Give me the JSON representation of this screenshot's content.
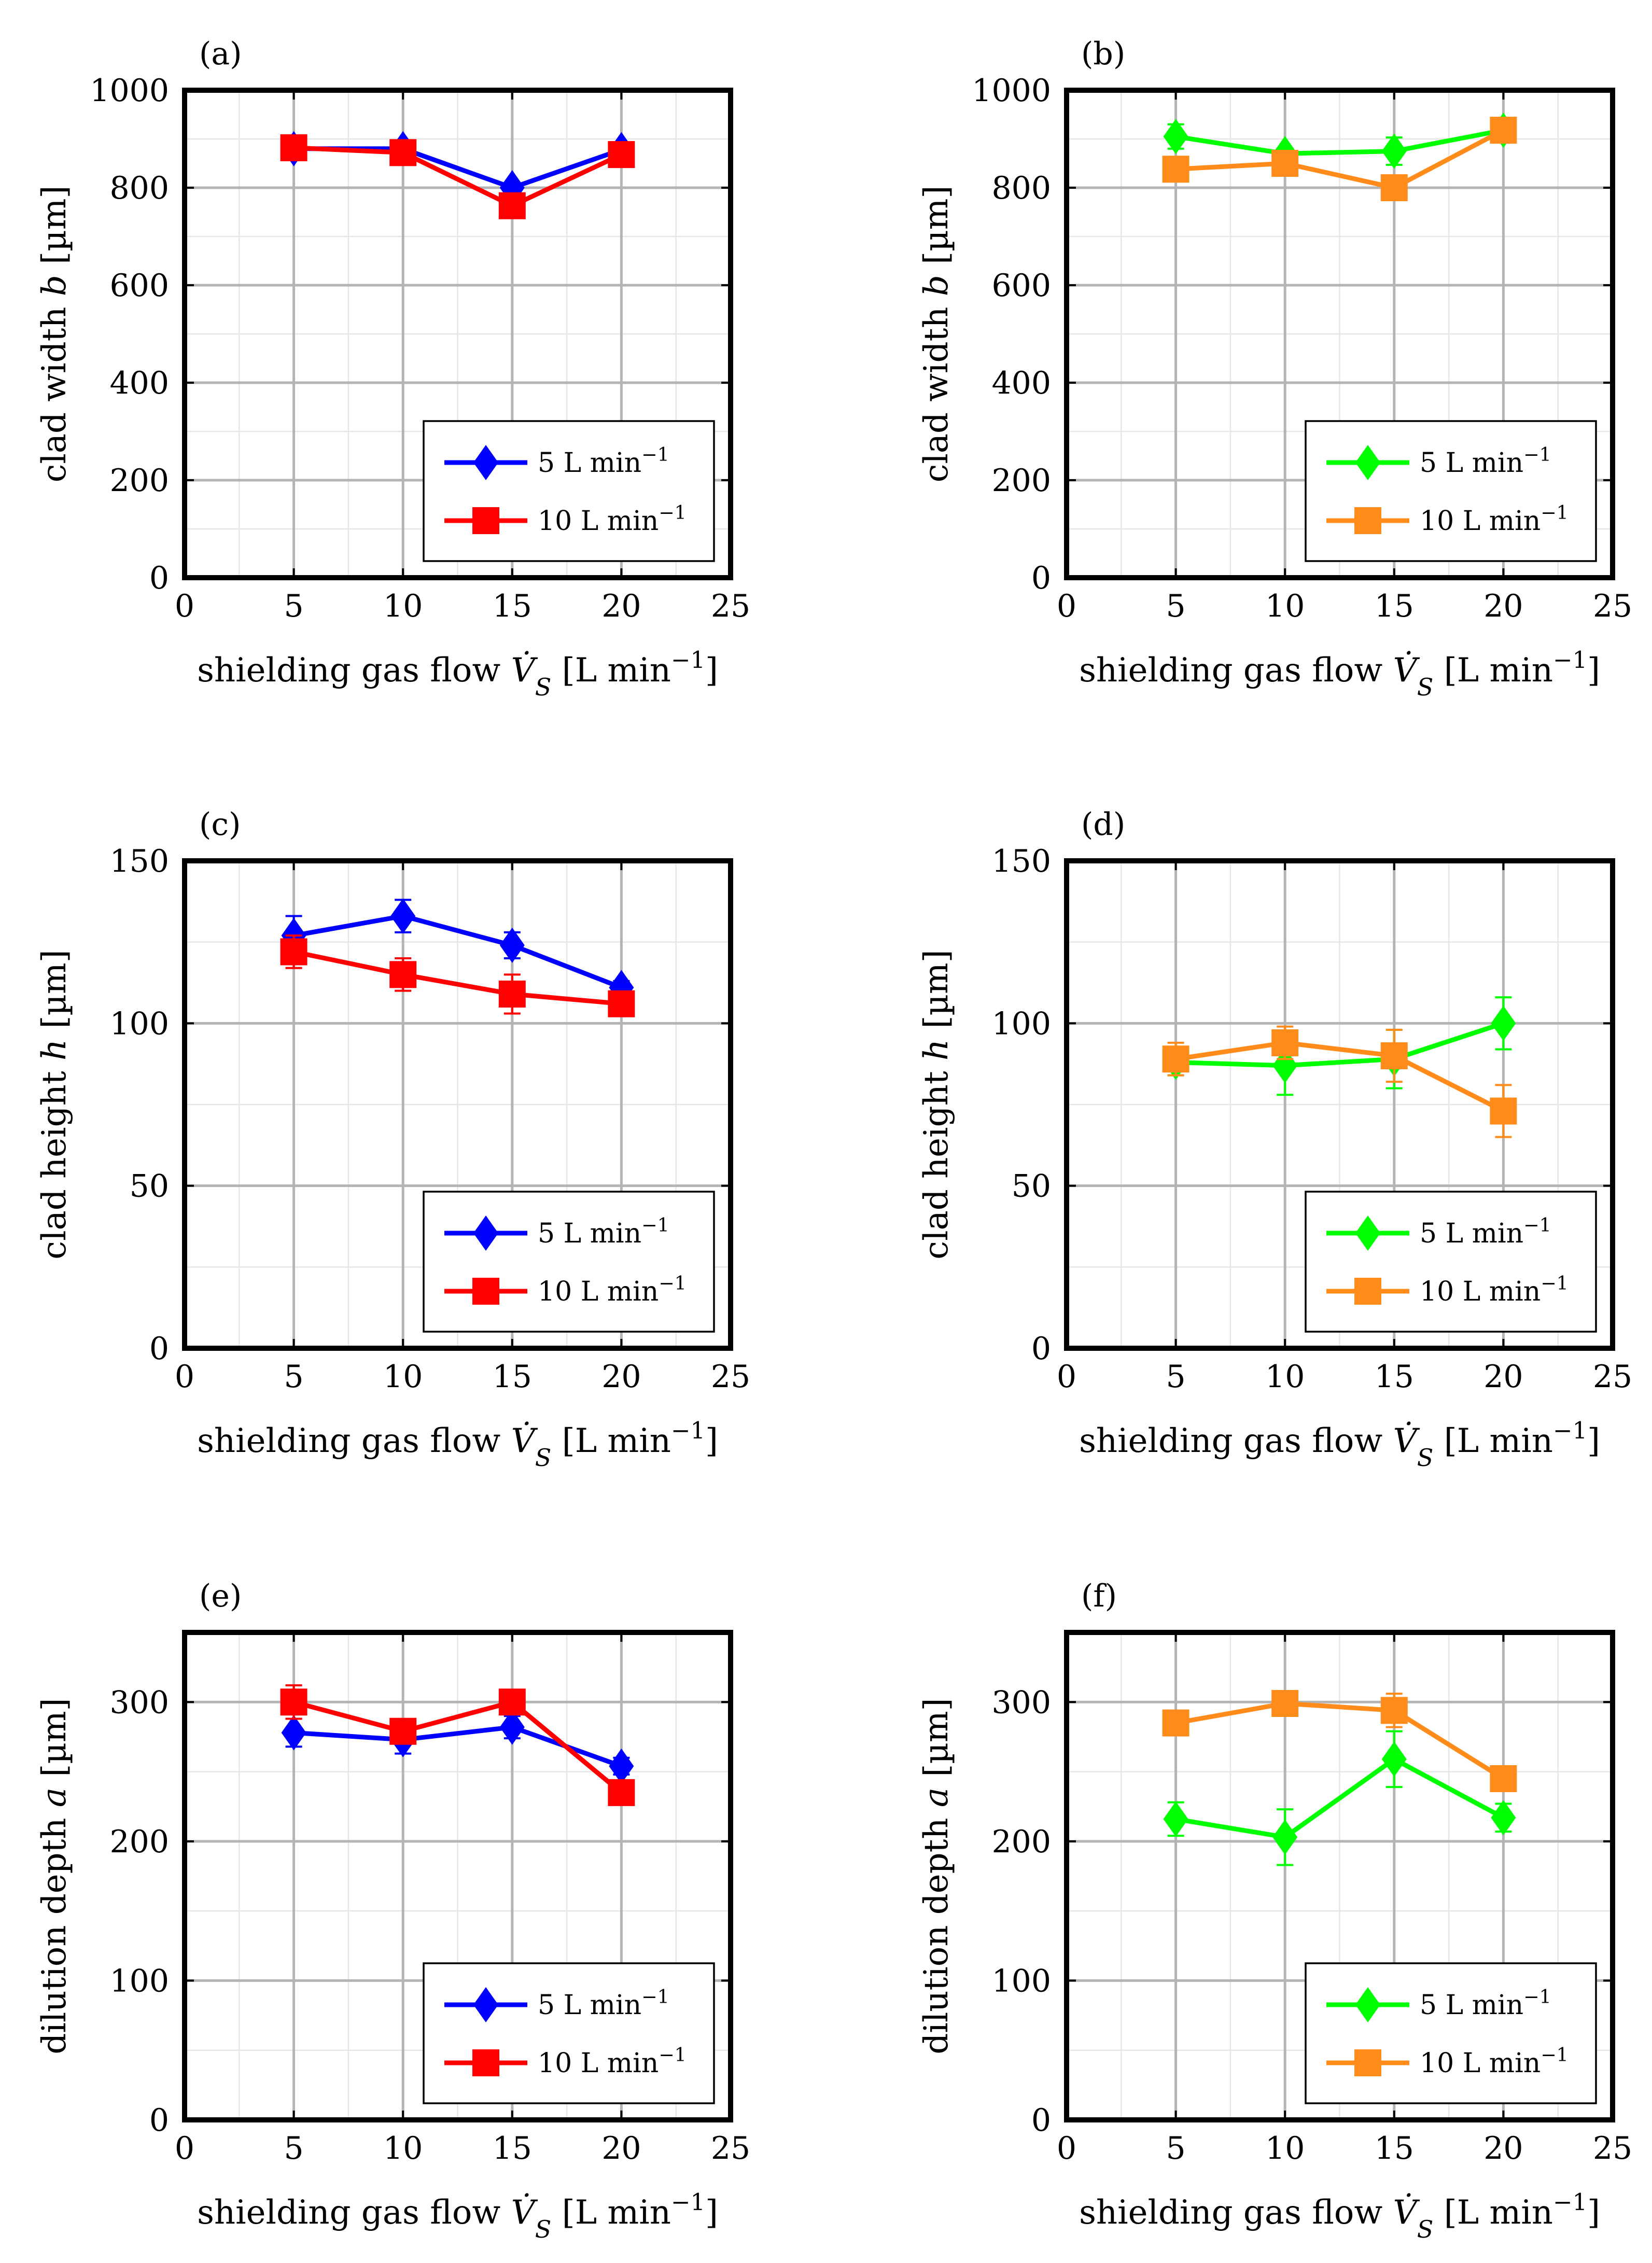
{
  "chart_data": [
    {
      "id": "a",
      "panel_label": "(a)",
      "type": "line",
      "xlabel": "shielding gas flow V̇S [L min⁻¹]",
      "ylabel": "clad width b [µm]",
      "xlim": [
        0,
        25
      ],
      "ylim": [
        0,
        1000
      ],
      "x_ticks": [
        "0",
        "5",
        "10",
        "15",
        "20",
        "25"
      ],
      "y_ticks": [
        "0",
        "200",
        "400",
        "600",
        "800",
        "1000"
      ],
      "grid": true,
      "legend_position": "bottom-right",
      "series": [
        {
          "name": "5 L min⁻¹",
          "color": "#0000ff",
          "marker": "diamond",
          "x": [
            5,
            10,
            15,
            20
          ],
          "y": [
            880,
            880,
            800,
            878
          ],
          "err": [
            10,
            10,
            10,
            10
          ]
        },
        {
          "name": "10 L min⁻¹",
          "color": "#ff0000",
          "marker": "square",
          "x": [
            5,
            10,
            15,
            20
          ],
          "y": [
            882,
            872,
            763,
            868
          ],
          "err": [
            12,
            12,
            12,
            12
          ]
        }
      ]
    },
    {
      "id": "b",
      "panel_label": "(b)",
      "type": "line",
      "xlabel": "shielding gas flow V̇S [L min⁻¹]",
      "ylabel": "clad width b [µm]",
      "xlim": [
        0,
        25
      ],
      "ylim": [
        0,
        1000
      ],
      "x_ticks": [
        "0",
        "5",
        "10",
        "15",
        "20",
        "25"
      ],
      "y_ticks": [
        "0",
        "200",
        "400",
        "600",
        "800",
        "1000"
      ],
      "grid": true,
      "legend_position": "bottom-right",
      "series": [
        {
          "name": "5 L min⁻¹",
          "color": "#00ff00",
          "marker": "diamond",
          "x": [
            5,
            10,
            15,
            20
          ],
          "y": [
            905,
            870,
            875,
            918
          ],
          "err": [
            25,
            10,
            28,
            10
          ]
        },
        {
          "name": "10 L min⁻¹",
          "color": "#ff8c1a",
          "marker": "square",
          "x": [
            5,
            10,
            15,
            20
          ],
          "y": [
            838,
            850,
            800,
            918
          ],
          "err": [
            12,
            12,
            12,
            10
          ]
        }
      ]
    },
    {
      "id": "c",
      "panel_label": "(c)",
      "type": "line",
      "xlabel": "shielding gas flow V̇S [L min⁻¹]",
      "ylabel": "clad height h [µm]",
      "xlim": [
        0,
        25
      ],
      "ylim": [
        0,
        150
      ],
      "x_ticks": [
        "0",
        "5",
        "10",
        "15",
        "20",
        "25"
      ],
      "y_ticks": [
        "0",
        "50",
        "100",
        "150"
      ],
      "grid": true,
      "legend_position": "bottom-right",
      "series": [
        {
          "name": "5 L min⁻¹",
          "color": "#0000ff",
          "marker": "diamond",
          "x": [
            5,
            10,
            15,
            20
          ],
          "y": [
            127,
            133,
            124,
            111
          ],
          "err": [
            6,
            5,
            4,
            2
          ]
        },
        {
          "name": "10 L min⁻¹",
          "color": "#ff0000",
          "marker": "square",
          "x": [
            5,
            10,
            15,
            20
          ],
          "y": [
            122,
            115,
            109,
            106
          ],
          "err": [
            5,
            5,
            6,
            3
          ]
        }
      ]
    },
    {
      "id": "d",
      "panel_label": "(d)",
      "type": "line",
      "xlabel": "shielding gas flow V̇S [L min⁻¹]",
      "ylabel": "clad height h [µm]",
      "xlim": [
        0,
        25
      ],
      "ylim": [
        0,
        150
      ],
      "x_ticks": [
        "0",
        "5",
        "10",
        "15",
        "20",
        "25"
      ],
      "y_ticks": [
        "0",
        "50",
        "100",
        "150"
      ],
      "grid": true,
      "legend_position": "bottom-right",
      "series": [
        {
          "name": "5 L min⁻¹",
          "color": "#00ff00",
          "marker": "diamond",
          "x": [
            5,
            10,
            15,
            20
          ],
          "y": [
            88,
            87,
            89,
            100
          ],
          "err": [
            4,
            9,
            9,
            8
          ]
        },
        {
          "name": "10 L min⁻¹",
          "color": "#ff8c1a",
          "marker": "square",
          "x": [
            5,
            10,
            15,
            20
          ],
          "y": [
            89,
            94,
            90,
            73
          ],
          "err": [
            5,
            5,
            8,
            8
          ]
        }
      ]
    },
    {
      "id": "e",
      "panel_label": "(e)",
      "type": "line",
      "xlabel": "shielding gas flow V̇S [L min⁻¹]",
      "ylabel": "dilution depth a [µm]",
      "xlim": [
        0,
        25
      ],
      "ylim": [
        0,
        350
      ],
      "x_ticks": [
        "0",
        "5",
        "10",
        "15",
        "20",
        "25"
      ],
      "y_ticks": [
        "0",
        "100",
        "200",
        "300"
      ],
      "grid": true,
      "legend_position": "bottom-right",
      "series": [
        {
          "name": "5 L min⁻¹",
          "color": "#0000ff",
          "marker": "diamond",
          "x": [
            5,
            10,
            15,
            20
          ],
          "y": [
            278,
            273,
            282,
            254
          ],
          "err": [
            10,
            10,
            8,
            6
          ]
        },
        {
          "name": "10 L min⁻¹",
          "color": "#ff0000",
          "marker": "square",
          "x": [
            5,
            10,
            15,
            20
          ],
          "y": [
            300,
            279,
            300,
            235
          ],
          "err": [
            12,
            6,
            6,
            6
          ]
        }
      ]
    },
    {
      "id": "f",
      "panel_label": "(f)",
      "type": "line",
      "xlabel": "shielding gas flow V̇S [L min⁻¹]",
      "ylabel": "dilution depth a [µm]",
      "xlim": [
        0,
        25
      ],
      "ylim": [
        0,
        350
      ],
      "x_ticks": [
        "0",
        "5",
        "10",
        "15",
        "20",
        "25"
      ],
      "y_ticks": [
        "0",
        "100",
        "200",
        "300"
      ],
      "grid": true,
      "legend_position": "bottom-right",
      "series": [
        {
          "name": "5 L min⁻¹",
          "color": "#00ff00",
          "marker": "diamond",
          "x": [
            5,
            10,
            15,
            20
          ],
          "y": [
            216,
            203,
            259,
            217
          ],
          "err": [
            12,
            20,
            20,
            10
          ]
        },
        {
          "name": "10 L min⁻¹",
          "color": "#ff8c1a",
          "marker": "square",
          "x": [
            5,
            10,
            15,
            20
          ],
          "y": [
            285,
            299,
            294,
            245
          ],
          "err": [
            6,
            6,
            12,
            6
          ]
        }
      ]
    }
  ]
}
